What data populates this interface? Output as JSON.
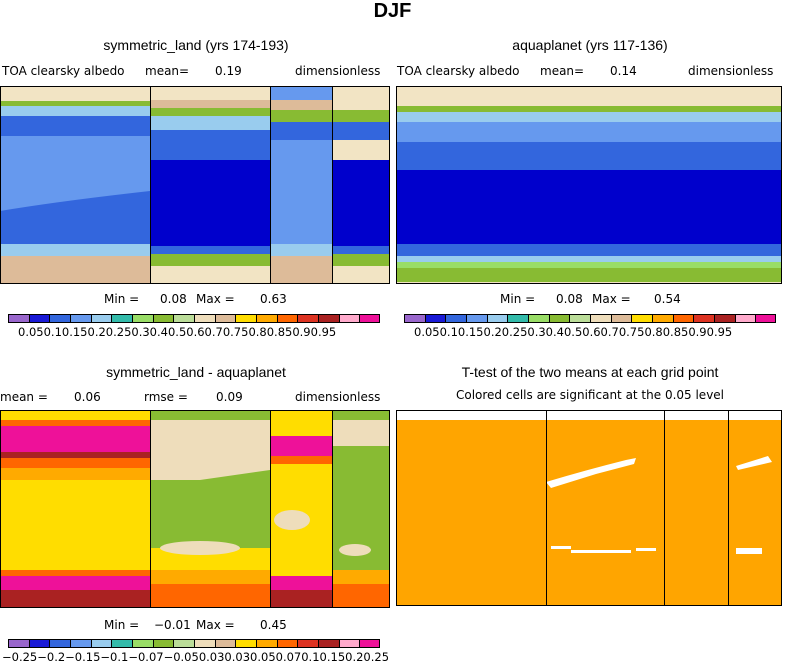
{
  "title": "DJF",
  "panels": {
    "p1": {
      "title": "symmetric_land (yrs 174-193)",
      "left_label": "TOA clearsky albedo",
      "mean_label": "mean=",
      "mean_value": "0.19",
      "units": "dimensionless",
      "min_label": "Min =",
      "min_value": "0.08",
      "max_label": "Max =",
      "max_value": "0.63"
    },
    "p2": {
      "title": "aquaplanet (yrs 117-136)",
      "left_label": "TOA clearsky albedo",
      "mean_label": "mean=",
      "mean_value": "0.14",
      "units": "dimensionless",
      "min_label": "Min =",
      "min_value": "0.08",
      "max_label": "Max =",
      "max_value": "0.54"
    },
    "p3": {
      "title": "symmetric_land - aquaplanet",
      "mean_label": "mean =",
      "mean_value": "0.06",
      "rmse_label": "rmse =",
      "rmse_value": "0.09",
      "units": "dimensionless",
      "min_label": "Min =",
      "min_value": "−0.01",
      "max_label": "Max =",
      "max_value": "0.45"
    },
    "p4": {
      "title": "T-test of the two means at each grid point",
      "subtitle": "Colored cells are significant at the 0.05 level"
    }
  },
  "colorbar_top": {
    "colors": [
      "#9966cc",
      "#1a1ad6",
      "#3366dd",
      "#6699ee",
      "#99ccee",
      "#33bbaa",
      "#99dd66",
      "#88bb33",
      "#bbdd99",
      "#eeddbb",
      "#ddbb99",
      "#ffdd00",
      "#ffaa00",
      "#ff6600",
      "#dd3322",
      "#aa2222",
      "#ffaacc",
      "#ee1199"
    ],
    "labels": [
      "0.05",
      "0.1",
      "0.15",
      "0.2",
      "0.25",
      "0.3",
      "0.4",
      "0.5",
      "0.6",
      "0.7",
      "0.75",
      "0.8",
      "0.85",
      "0.9",
      "0.95"
    ]
  },
  "colorbar_bottom": {
    "colors": [
      "#9966cc",
      "#1a1ad6",
      "#3366dd",
      "#6699ee",
      "#99ccee",
      "#33bbaa",
      "#99dd66",
      "#88bb33",
      "#bbdd99",
      "#eeddbb",
      "#ddbb99",
      "#ffdd00",
      "#ffaa00",
      "#ff6600",
      "#dd3322",
      "#aa2222",
      "#ffaacc",
      "#ee1199"
    ],
    "labels": [
      "−0.25",
      "−0.2",
      "−0.15",
      "−0.1",
      "−0.07",
      "−0.05",
      "0.03",
      "0.03",
      "0.05",
      "0.07",
      "0.1",
      "0.15",
      "0.2",
      "0.25"
    ]
  },
  "chart_data": [
    {
      "type": "heatmap",
      "title": "symmetric_land (yrs 174-193)",
      "variable": "TOA clearsky albedo",
      "units": "dimensionless",
      "mean": 0.19,
      "min": 0.08,
      "max": 0.63
    },
    {
      "type": "heatmap",
      "title": "aquaplanet (yrs 117-136)",
      "variable": "TOA clearsky albedo",
      "units": "dimensionless",
      "mean": 0.14,
      "min": 0.08,
      "max": 0.54
    },
    {
      "type": "heatmap",
      "title": "symmetric_land - aquaplanet",
      "units": "dimensionless",
      "mean": 0.06,
      "rmse": 0.09,
      "min": -0.01,
      "max": 0.45
    },
    {
      "type": "heatmap",
      "title": "T-test of the two means at each grid point",
      "subtitle": "Colored cells are significant at the 0.05 level"
    }
  ]
}
